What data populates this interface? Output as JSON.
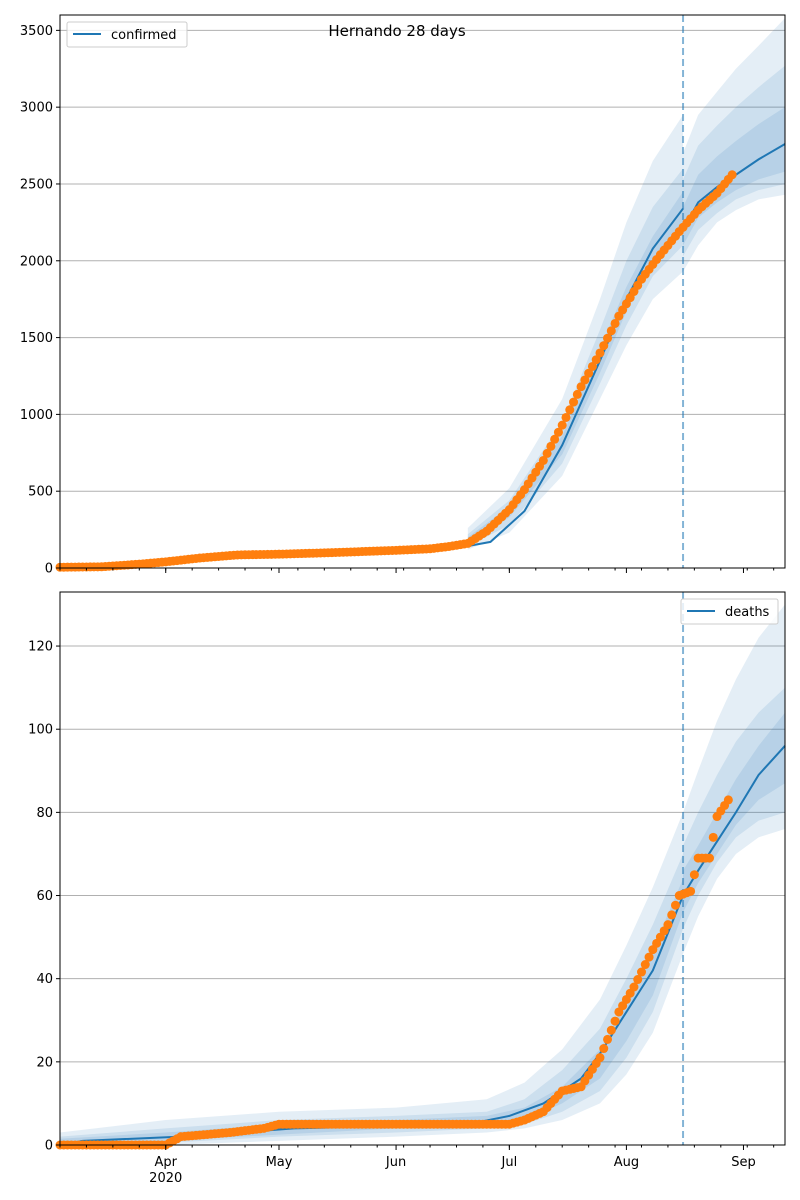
{
  "figure": {
    "suptitle": "Hernando 28 days"
  },
  "colors": {
    "model": "#1f77b4",
    "observed": "#ff7f0e",
    "band": "#1f77b4",
    "grid": "#b0b0b0",
    "divider": "#1f77b4"
  },
  "x_axis": {
    "ticks": [
      {
        "date": "2020-04-01",
        "label": "Apr",
        "sublabel": "2020"
      },
      {
        "date": "2020-05-01",
        "label": "May",
        "sublabel": ""
      },
      {
        "date": "2020-06-01",
        "label": "Jun",
        "sublabel": ""
      },
      {
        "date": "2020-07-01",
        "label": "Jul",
        "sublabel": ""
      },
      {
        "date": "2020-08-01",
        "label": "Aug",
        "sublabel": ""
      },
      {
        "date": "2020-09-01",
        "label": "Sep",
        "sublabel": ""
      }
    ],
    "xlim": [
      "2020-03-04",
      "2020-09-12"
    ]
  },
  "chart_data": [
    {
      "type": "line",
      "title": "",
      "legend": {
        "entries": [
          "confirmed"
        ],
        "placement": "top-left"
      },
      "ylim": [
        0,
        3600
      ],
      "yticks": [
        0,
        500,
        1000,
        1500,
        2000,
        2500,
        3000,
        3500
      ],
      "grid": "horizontal",
      "forecast_start": "2020-08-16",
      "model_fit": {
        "name": "confirmed",
        "x": [
          "2020-03-04",
          "2020-03-25",
          "2020-04-15",
          "2020-05-01",
          "2020-06-01",
          "2020-06-15",
          "2020-06-26",
          "2020-07-05",
          "2020-07-15",
          "2020-07-25",
          "2020-08-01",
          "2020-08-08",
          "2020-08-16"
        ],
        "y": [
          5,
          15,
          60,
          80,
          100,
          120,
          170,
          370,
          800,
          1350,
          1750,
          2080,
          2340
        ]
      },
      "forecast": {
        "x": [
          "2020-08-16",
          "2020-08-20",
          "2020-08-25",
          "2020-08-30",
          "2020-09-05",
          "2020-09-12"
        ],
        "median": [
          2200,
          2380,
          2480,
          2560,
          2660,
          2760
        ],
        "bands": [
          {
            "lower": [
              1930,
              2100,
              2250,
              2330,
              2400,
              2430
            ],
            "upper": [
              2700,
              2950,
              3100,
              3250,
              3400,
              3580
            ]
          },
          {
            "lower": [
              2030,
              2200,
              2310,
              2400,
              2460,
              2500
            ],
            "upper": [
              2530,
              2750,
              2880,
              3000,
              3130,
              3270
            ]
          },
          {
            "lower": [
              2100,
              2280,
              2380,
              2460,
              2530,
              2580
            ],
            "upper": [
              2350,
              2560,
              2680,
              2780,
              2890,
              3000
            ]
          }
        ]
      },
      "fit_bands": {
        "x": [
          "2020-06-20",
          "2020-07-01",
          "2020-07-15",
          "2020-07-25",
          "2020-08-01",
          "2020-08-08",
          "2020-08-16"
        ],
        "bands": [
          {
            "lower": [
              120,
              230,
              600,
              1100,
              1450,
              1750,
              1930
            ],
            "upper": [
              260,
              520,
              1100,
              1750,
              2250,
              2650,
              2950
            ]
          },
          {
            "lower": [
              140,
              280,
              680,
              1200,
              1580,
              1900,
              2100
            ],
            "upper": [
              220,
              440,
              950,
              1550,
              2000,
              2350,
              2600
            ]
          },
          {
            "lower": [
              155,
              330,
              740,
              1270,
              1670,
              1990,
              2230
            ],
            "upper": [
              200,
              400,
              860,
              1430,
              1830,
              2160,
              2450
            ]
          }
        ]
      },
      "observed": {
        "x": [
          "2020-03-04",
          "2020-03-15",
          "2020-03-25",
          "2020-04-01",
          "2020-04-10",
          "2020-04-20",
          "2020-05-01",
          "2020-05-15",
          "2020-06-01",
          "2020-06-10",
          "2020-06-15",
          "2020-06-20",
          "2020-06-25",
          "2020-07-01",
          "2020-07-05",
          "2020-07-10",
          "2020-07-15",
          "2020-07-20",
          "2020-07-25",
          "2020-07-30",
          "2020-08-05",
          "2020-08-10",
          "2020-08-15",
          "2020-08-20",
          "2020-08-25",
          "2020-08-29"
        ],
        "y": [
          5,
          8,
          25,
          40,
          65,
          85,
          90,
          100,
          115,
          125,
          140,
          160,
          240,
          380,
          510,
          700,
          930,
          1180,
          1400,
          1640,
          1880,
          2040,
          2190,
          2330,
          2440,
          2560
        ]
      }
    },
    {
      "type": "line",
      "title": "",
      "legend": {
        "entries": [
          "deaths"
        ],
        "placement": "top-right"
      },
      "ylim": [
        0,
        133
      ],
      "yticks": [
        0,
        20,
        40,
        60,
        80,
        100,
        120
      ],
      "grid": "horizontal",
      "forecast_start": "2020-08-16",
      "model_fit": {
        "name": "deaths",
        "x": [
          "2020-03-04",
          "2020-03-10",
          "2020-04-05",
          "2020-04-20",
          "2020-05-05",
          "2020-06-20",
          "2020-07-01",
          "2020-07-10",
          "2020-07-20",
          "2020-07-25",
          "2020-08-01",
          "2020-08-08",
          "2020-08-16"
        ],
        "y": [
          0,
          1,
          2,
          3,
          4,
          5,
          7,
          10,
          16,
          22,
          32,
          42,
          60
        ]
      },
      "forecast": {
        "x": [
          "2020-08-16",
          "2020-08-20",
          "2020-08-25",
          "2020-08-30",
          "2020-09-05",
          "2020-09-12"
        ],
        "median": [
          60,
          66,
          73,
          80,
          89,
          96
        ],
        "bands": [
          {
            "lower": [
              46,
              55,
              64,
              70,
              74,
              76
            ],
            "upper": [
              80,
              90,
              102,
              112,
              122,
              130
            ]
          },
          {
            "lower": [
              52,
              60,
              68,
              74,
              78,
              80
            ],
            "upper": [
              72,
              80,
              89,
              97,
              104,
              110
            ]
          },
          {
            "lower": [
              56,
              63,
              70,
              77,
              83,
              87
            ],
            "upper": [
              66,
              72,
              80,
              88,
              96,
              104
            ]
          }
        ]
      },
      "fit_bands": {
        "x": [
          "2020-03-04",
          "2020-04-01",
          "2020-05-01",
          "2020-06-01",
          "2020-06-25",
          "2020-07-05",
          "2020-07-15",
          "2020-07-25",
          "2020-08-01",
          "2020-08-08",
          "2020-08-16"
        ],
        "bands": [
          {
            "lower": [
              0,
              0,
              1,
              2,
              3,
              4,
              6,
              10,
              17,
              27,
              46
            ],
            "upper": [
              3,
              6,
              8,
              9,
              11,
              15,
              23,
              35,
              48,
              62,
              80
            ]
          },
          {
            "lower": [
              0,
              0.5,
              2,
              3,
              4,
              5,
              8,
              13,
              21,
              32,
              52
            ],
            "upper": [
              2,
              4,
              6,
              7,
              8,
              11,
              18,
              28,
              40,
              53,
              70
            ]
          },
          {
            "lower": [
              0,
              1,
              2.5,
              4,
              5,
              6,
              10,
              16,
              25,
              36,
              56
            ],
            "upper": [
              1.5,
              3,
              5,
              6,
              7,
              9,
              14,
              23,
              35,
              47,
              64
            ]
          }
        ]
      },
      "observed": {
        "x": [
          "2020-03-04",
          "2020-04-01",
          "2020-04-05",
          "2020-04-18",
          "2020-04-27",
          "2020-05-01",
          "2020-06-01",
          "2020-07-01",
          "2020-07-05",
          "2020-07-10",
          "2020-07-15",
          "2020-07-20",
          "2020-07-25",
          "2020-07-30",
          "2020-08-03",
          "2020-08-08",
          "2020-08-12",
          "2020-08-15",
          "2020-08-18",
          "2020-08-20",
          "2020-08-23",
          "2020-08-25",
          "2020-08-28"
        ],
        "y": [
          0,
          0,
          2,
          3,
          4,
          5,
          5,
          5,
          6,
          8,
          13,
          14,
          21,
          32,
          38,
          47,
          53,
          60,
          61,
          69,
          69,
          79,
          83
        ]
      }
    }
  ]
}
